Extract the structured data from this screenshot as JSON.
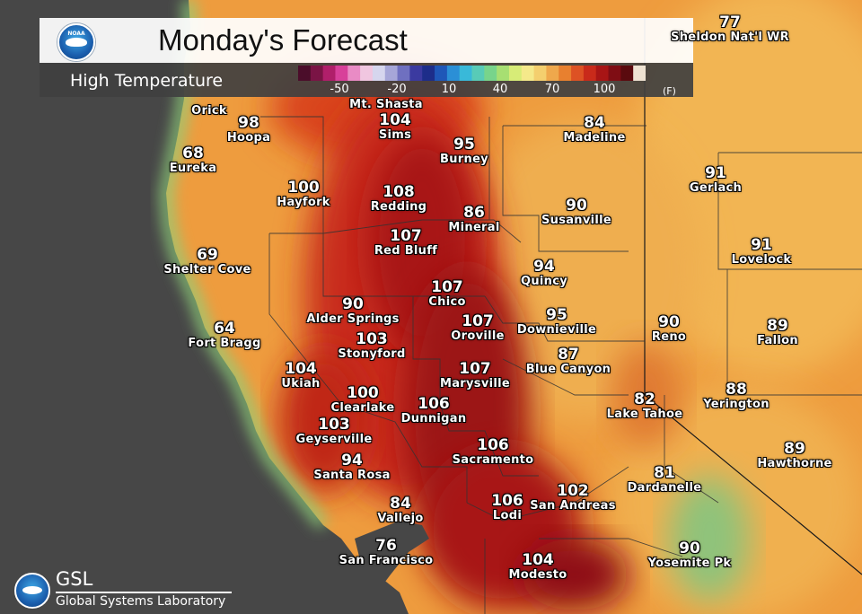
{
  "header": {
    "title": "Monday's Forecast",
    "subtitle": "High Temperature",
    "logo_text": "NOAA",
    "scale_ticks": [
      "-50",
      "-20",
      "10",
      "40",
      "70",
      "100"
    ],
    "scale_unit": "(F)",
    "scale_colors": [
      "#4b0d2a",
      "#7a1445",
      "#b01f6a",
      "#d8409a",
      "#e98bc5",
      "#f0c6e0",
      "#d6d6ee",
      "#a6a6d8",
      "#6f70c0",
      "#3b3aa0",
      "#1d2d8a",
      "#1f57b8",
      "#2b8fd6",
      "#39b9d9",
      "#58cbb7",
      "#78d48b",
      "#a7df72",
      "#d7ec77",
      "#f5e98a",
      "#f4cf6e",
      "#efa84c",
      "#e8802f",
      "#dd5224",
      "#c92a1a",
      "#a81515",
      "#7f0d14",
      "#5a0a0e",
      "#efe3d3"
    ]
  },
  "map": {
    "ocean_color": "#474747",
    "land_colors": {
      "mild": "#f0b24a",
      "warm": "#ea8a35",
      "hot": "#d9451f",
      "very_hot": "#b01818",
      "hottest": "#8e0e15",
      "cool_coast": "#9fd27a"
    },
    "stations": [
      {
        "temp": "98",
        "name": "Hoopa"
      },
      {
        "temp": "",
        "name": "Orick"
      },
      {
        "temp": "68",
        "name": "Eureka"
      },
      {
        "temp": "104",
        "name": "Sims"
      },
      {
        "temp": "",
        "name": "Mt. Shasta"
      },
      {
        "temp": "95",
        "name": "Burney"
      },
      {
        "temp": "84",
        "name": "Madeline"
      },
      {
        "temp": "77",
        "name": "Sheldon Nat'l WR"
      },
      {
        "temp": "100",
        "name": "Hayfork"
      },
      {
        "temp": "108",
        "name": "Redding"
      },
      {
        "temp": "86",
        "name": "Mineral"
      },
      {
        "temp": "90",
        "name": "Susanville"
      },
      {
        "temp": "91",
        "name": "Gerlach"
      },
      {
        "temp": "69",
        "name": "Shelter Cove"
      },
      {
        "temp": "107",
        "name": "Red Bluff"
      },
      {
        "temp": "94",
        "name": "Quincy"
      },
      {
        "temp": "91",
        "name": "Lovelock"
      },
      {
        "temp": "107",
        "name": "Chico"
      },
      {
        "temp": "90",
        "name": "Alder Springs"
      },
      {
        "temp": "107",
        "name": "Oroville"
      },
      {
        "temp": "95",
        "name": "Downieville"
      },
      {
        "temp": "64",
        "name": "Fort Bragg"
      },
      {
        "temp": "103",
        "name": "Stonyford"
      },
      {
        "temp": "90",
        "name": "Reno"
      },
      {
        "temp": "89",
        "name": "Fallon"
      },
      {
        "temp": "87",
        "name": "Blue Canyon"
      },
      {
        "temp": "104",
        "name": "Ukiah"
      },
      {
        "temp": "107",
        "name": "Marysville"
      },
      {
        "temp": "100",
        "name": "Clearlake"
      },
      {
        "temp": "106",
        "name": "Dunnigan"
      },
      {
        "temp": "82",
        "name": "Lake Tahoe"
      },
      {
        "temp": "88",
        "name": "Yerington"
      },
      {
        "temp": "103",
        "name": "Geyserville"
      },
      {
        "temp": "106",
        "name": "Sacramento"
      },
      {
        "temp": "89",
        "name": "Hawthorne"
      },
      {
        "temp": "94",
        "name": "Santa Rosa"
      },
      {
        "temp": "81",
        "name": "Dardanelle"
      },
      {
        "temp": "84",
        "name": "Vallejo"
      },
      {
        "temp": "106",
        "name": "Lodi"
      },
      {
        "temp": "102",
        "name": "San Andreas"
      },
      {
        "temp": "76",
        "name": "San Francisco"
      },
      {
        "temp": "104",
        "name": "Modesto"
      },
      {
        "temp": "90",
        "name": "Yosemite Pk"
      }
    ]
  },
  "footer": {
    "logo_text": "NOAA",
    "short": "GSL",
    "full": "Global Systems Laboratory"
  }
}
